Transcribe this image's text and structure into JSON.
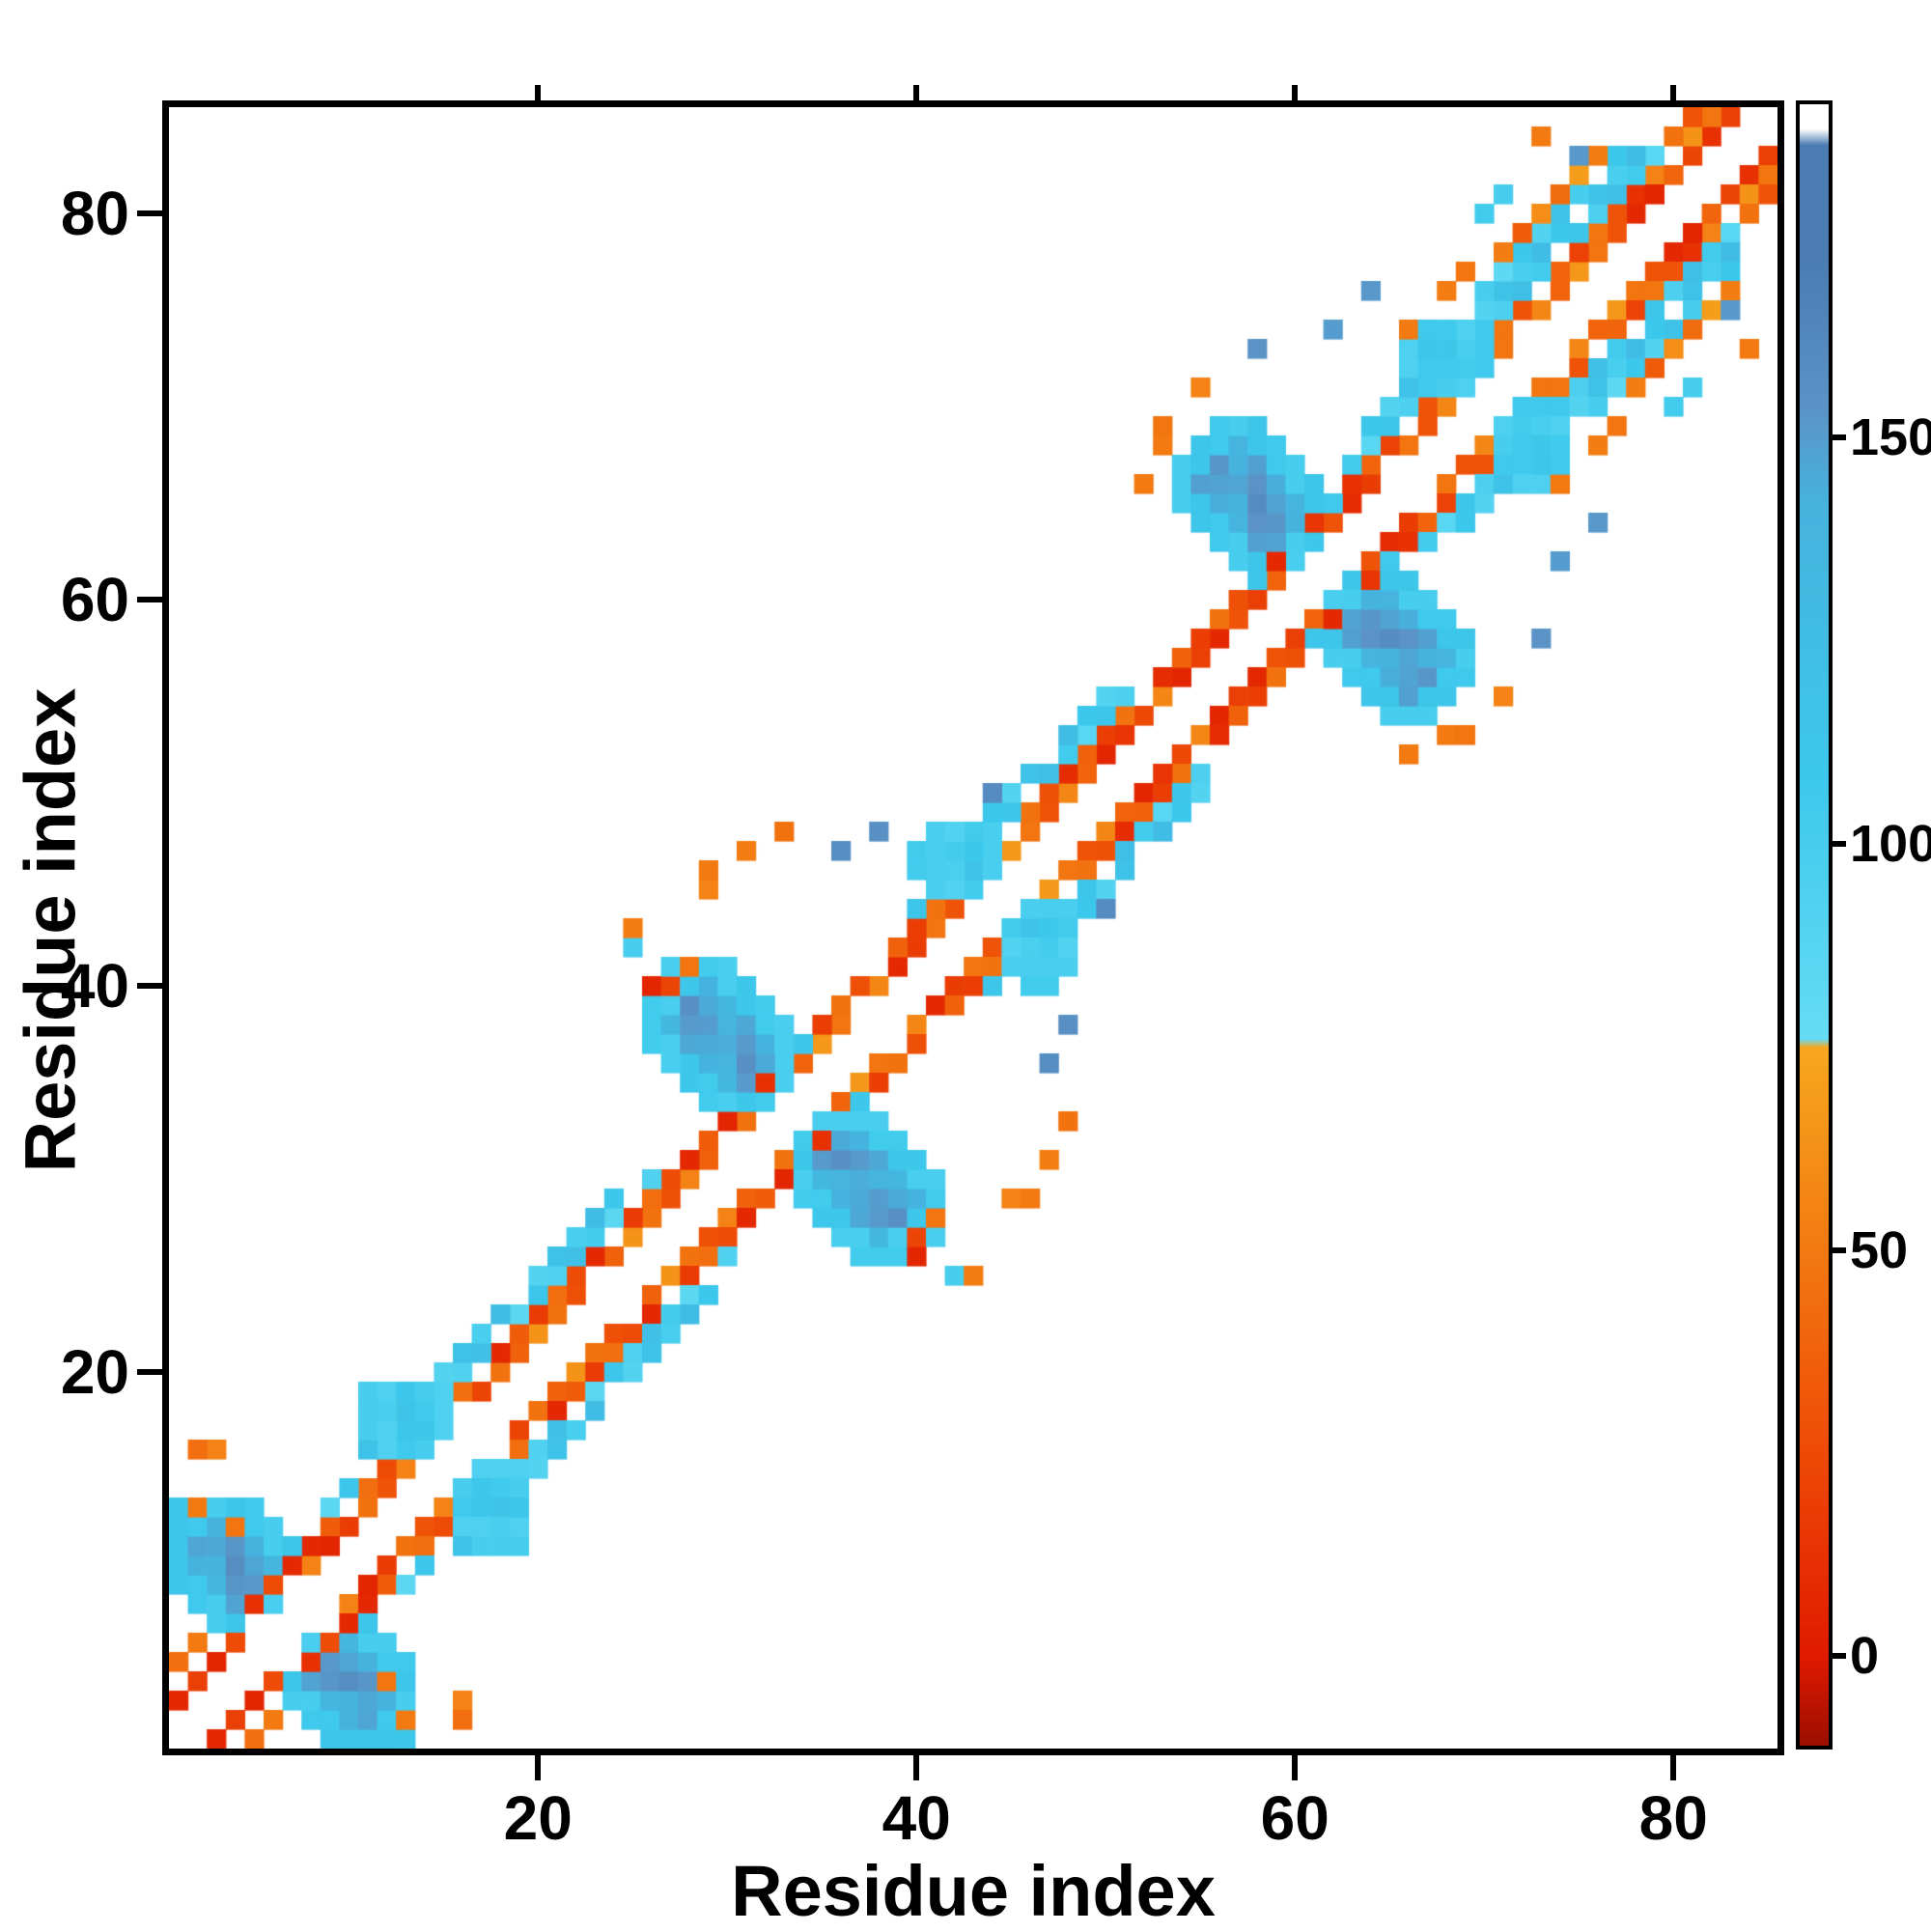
{
  "chart_data": {
    "type": "heatmap",
    "title": "",
    "xlabel": "Residue index",
    "ylabel": "Residue index",
    "x_range": [
      0.5,
      85.5
    ],
    "y_range": [
      0.5,
      85.5
    ],
    "x_ticks": [
      20,
      40,
      60,
      80
    ],
    "y_ticks": [
      20,
      40,
      60,
      80
    ],
    "n_residues": 85,
    "symmetric": true,
    "grid": false,
    "background": "#ffffff",
    "colorbar": {
      "position": "right",
      "value_range": [
        -11,
        191
      ],
      "ticks": [
        0,
        50,
        100,
        150
      ],
      "stops": [
        {
          "v": -11,
          "color": "#9c0e00"
        },
        {
          "v": 0,
          "color": "#e01a00"
        },
        {
          "v": 25,
          "color": "#ee4a06"
        },
        {
          "v": 52,
          "color": "#f37d12"
        },
        {
          "v": 75,
          "color": "#f7a71f"
        },
        {
          "v": 76,
          "color": "#66dcf4"
        },
        {
          "v": 108,
          "color": "#3cc8ec"
        },
        {
          "v": 142,
          "color": "#46b2de"
        },
        {
          "v": 154,
          "color": "#5b93c6"
        },
        {
          "v": 172,
          "color": "#4a7cb2"
        },
        {
          "v": 186,
          "color": "#4a7cb2"
        },
        {
          "v": 188,
          "color": "#ffffff"
        },
        {
          "v": 191,
          "color": "#ffffff"
        }
      ]
    },
    "bands": [
      {
        "from": 8,
        "to": 31,
        "offsets": [
          {
            "d": 2,
            "v": 46
          },
          {
            "d": 3,
            "v": 26
          },
          {
            "d": 4,
            "v": 102,
            "range": [
              9,
              26
            ]
          },
          {
            "d": 5,
            "v": 108,
            "range": [
              11,
              24
            ]
          }
        ]
      },
      {
        "from": 33,
        "to": 57,
        "offsets": [
          {
            "d": 2,
            "v": 48
          },
          {
            "d": 3,
            "v": 28
          },
          {
            "d": 4,
            "v": 104,
            "range": [
              39,
              51
            ]
          },
          {
            "d": 5,
            "v": 108,
            "range": [
              41,
              50
            ]
          }
        ]
      },
      {
        "from": 59,
        "to": 79,
        "offsets": [
          {
            "d": 2,
            "v": 48
          },
          {
            "d": 3,
            "v": 30
          },
          {
            "d": 4,
            "v": 104,
            "range": [
              63,
              79
            ]
          },
          {
            "d": 5,
            "v": 108,
            "range": [
              64,
              78
            ]
          },
          {
            "d": 6,
            "v": 100,
            "range": [
              69,
              77
            ]
          },
          {
            "d": 7,
            "v": 52,
            "range": [
              70,
              76
            ]
          }
        ]
      },
      {
        "from": 79,
        "to": 83,
        "offsets": [
          {
            "d": 2,
            "v": 22
          },
          {
            "d": 3,
            "v": 46
          }
        ]
      }
    ],
    "crosses": [
      {
        "center_sum": 14,
        "i_min": 1,
        "i_max": 13,
        "core_min_sep": 4,
        "core_w": 2,
        "blob_max": 9,
        "core_v": 152,
        "fringe_v": 106,
        "arm_max": 12,
        "arm_v": 104
      },
      {
        "center_sum": 31,
        "i_min": 11,
        "i_max": 19,
        "core_min_sep": 3,
        "core_w": 1,
        "blob_max": 6,
        "core_v": 110,
        "fringe_v": 100,
        "arm_max": 7,
        "arm_v": 100
      },
      {
        "center_sum": 67,
        "i_min": 26,
        "i_max": 41,
        "core_min_sep": 4,
        "core_w": 2,
        "blob_max": 11,
        "core_v": 150,
        "fringe_v": 104,
        "arm_max": 14,
        "arm_v": 104
      },
      {
        "center_sum": 89,
        "i_min": 40,
        "i_max": 48,
        "core_min_sep": 3,
        "core_w": 1,
        "blob_max": 5,
        "core_v": 108,
        "fringe_v": 98,
        "arm_max": 6,
        "arm_v": 98
      },
      {
        "center_sum": 123,
        "i_min": 54,
        "i_max": 69,
        "core_min_sep": 4,
        "core_w": 2,
        "blob_max": 11,
        "core_v": 153,
        "fringe_v": 106,
        "arm_max": 13,
        "arm_v": 104
      },
      {
        "center_sum": 141,
        "i_min": 66,
        "i_max": 74,
        "core_min_sep": 3,
        "core_w": 1,
        "blob_max": 6,
        "core_v": 110,
        "fringe_v": 100,
        "arm_max": 7,
        "arm_v": 100
      }
    ],
    "cells": [
      [
        1,
        3,
        8
      ],
      [
        2,
        4,
        20
      ],
      [
        1,
        5,
        44
      ],
      [
        3,
        5,
        6
      ],
      [
        4,
        6,
        26
      ],
      [
        2,
        6,
        50
      ],
      [
        5,
        8,
        12
      ],
      [
        6,
        9,
        26
      ],
      [
        7,
        10,
        8
      ],
      [
        2,
        13,
        50
      ],
      [
        3,
        16,
        55
      ],
      [
        2,
        16,
        44
      ],
      [
        4,
        12,
        48
      ],
      [
        9,
        11,
        6
      ],
      [
        10,
        12,
        18
      ],
      [
        12,
        14,
        30
      ],
      [
        17,
        19,
        22
      ],
      [
        18,
        20,
        46
      ],
      [
        26,
        40,
        6
      ],
      [
        27,
        40,
        22
      ],
      [
        28,
        41,
        48
      ],
      [
        25,
        42,
        100
      ],
      [
        25,
        43,
        52
      ],
      [
        30,
        33,
        6
      ],
      [
        32,
        35,
        12
      ],
      [
        29,
        45,
        55
      ],
      [
        29,
        46,
        50
      ],
      [
        31,
        47,
        52
      ],
      [
        33,
        48,
        46
      ],
      [
        36,
        47,
        158
      ],
      [
        38,
        48,
        156
      ],
      [
        39,
        41,
        8
      ],
      [
        40,
        42,
        18
      ],
      [
        44,
        50,
        160
      ],
      [
        50,
        52,
        6
      ],
      [
        51,
        53,
        14
      ],
      [
        52,
        54,
        24
      ],
      [
        54,
        56,
        6
      ],
      [
        55,
        57,
        20
      ],
      [
        56,
        58,
        8
      ],
      [
        58,
        60,
        20
      ],
      [
        59,
        62,
        8
      ],
      [
        61,
        64,
        14
      ],
      [
        52,
        66,
        50
      ],
      [
        53,
        68,
        50
      ],
      [
        53,
        69,
        48
      ],
      [
        55,
        71,
        55
      ],
      [
        58,
        73,
        154
      ],
      [
        62,
        74,
        150
      ],
      [
        64,
        76,
        152
      ],
      [
        63,
        65,
        10
      ],
      [
        64,
        66,
        18
      ],
      [
        66,
        74,
        50
      ],
      [
        68,
        76,
        52
      ],
      [
        69,
        77,
        48
      ],
      [
        70,
        80,
        104
      ],
      [
        71,
        81,
        100
      ],
      [
        75,
        83,
        152
      ],
      [
        73,
        84,
        50
      ],
      [
        78,
        80,
        8
      ],
      [
        79,
        81,
        6
      ],
      [
        80,
        84,
        46
      ],
      [
        81,
        85,
        30
      ],
      [
        82,
        84,
        12
      ],
      [
        82,
        85,
        48
      ],
      [
        83,
        85,
        20
      ]
    ]
  }
}
